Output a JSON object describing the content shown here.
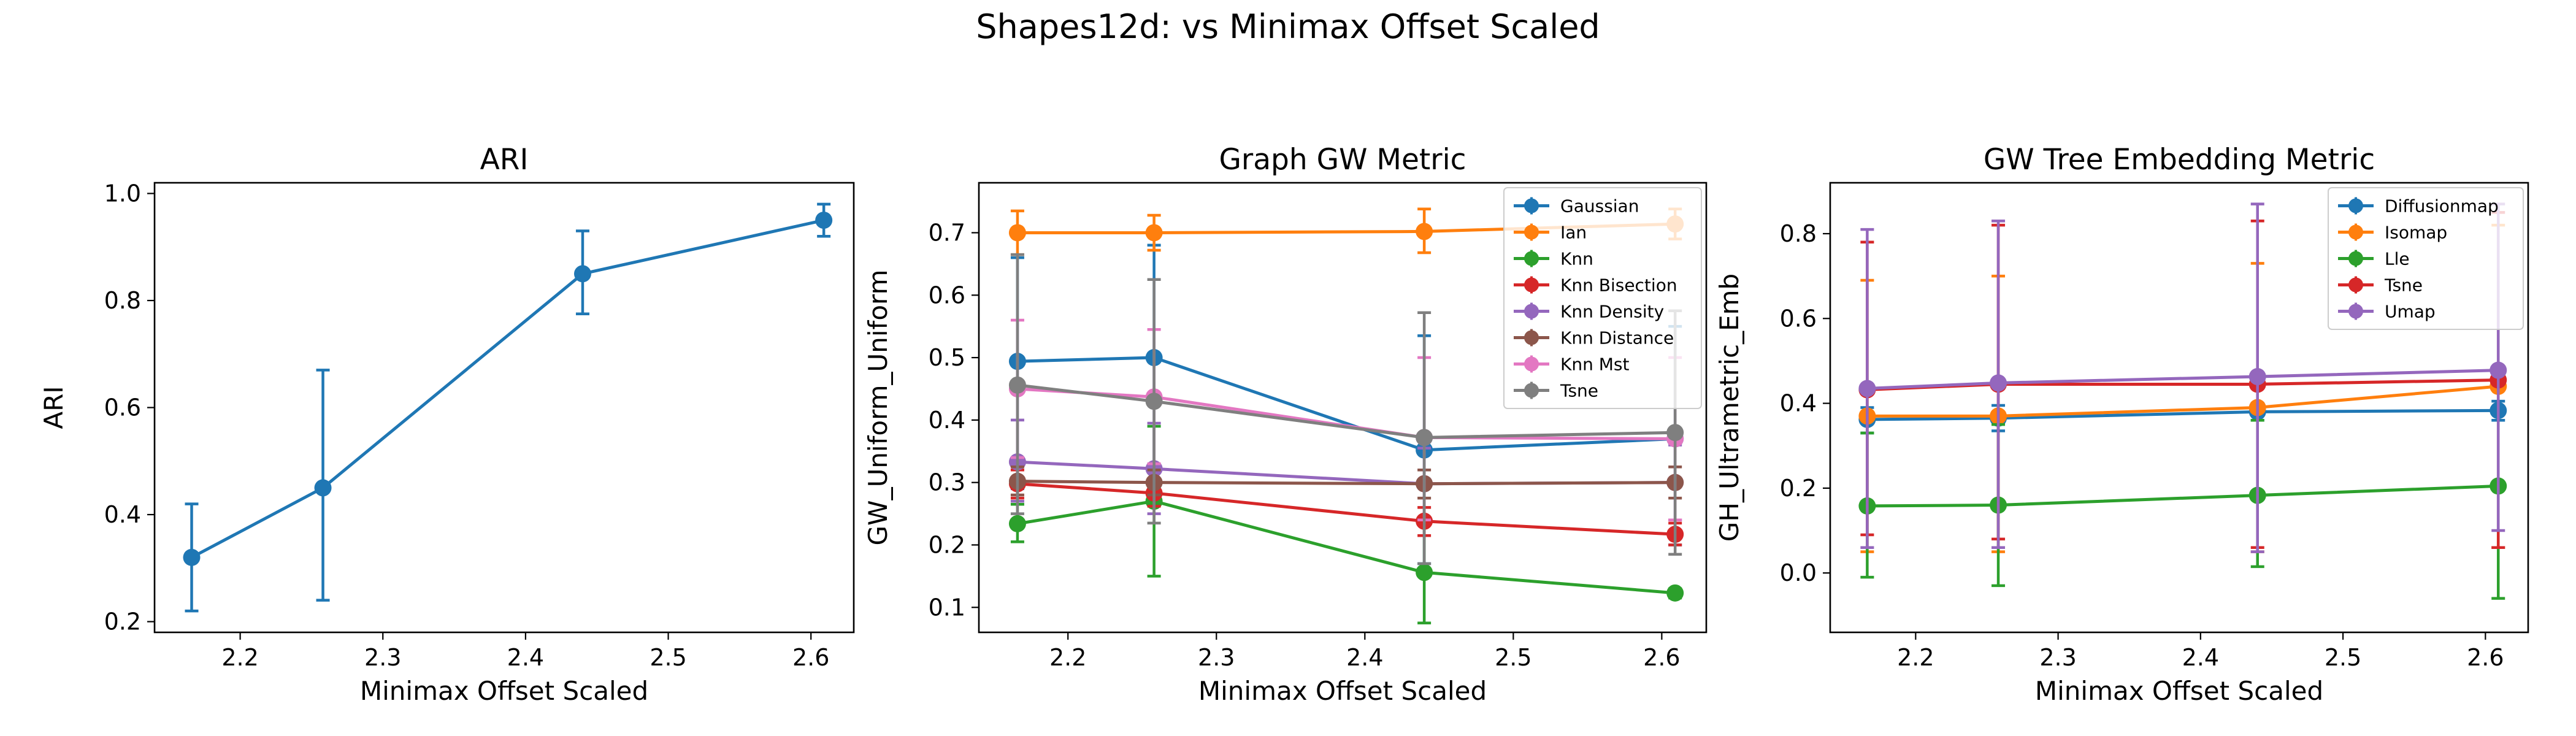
{
  "figure": {
    "title": "Shapes12d: vs Minimax Offset Scaled"
  },
  "colors": {
    "tab_blue": "#1f77b4",
    "tab_orange": "#ff7f0e",
    "tab_green": "#2ca02c",
    "tab_red": "#d62728",
    "tab_purple": "#9467bd",
    "tab_brown": "#8c564b",
    "tab_pink": "#e377c2",
    "tab_gray": "#7f7f7f"
  },
  "chart_data": [
    {
      "type": "line",
      "title": "ARI",
      "xlabel": "Minimax Offset Scaled",
      "ylabel": "ARI",
      "xlim": [
        2.14,
        2.63
      ],
      "ylim": [
        0.18,
        1.02
      ],
      "xticks": [
        2.2,
        2.3,
        2.4,
        2.5,
        2.6
      ],
      "xtick_labels": [
        "2.2",
        "2.3",
        "2.4",
        "2.5",
        "2.6"
      ],
      "yticks": [
        0.2,
        0.4,
        0.6,
        0.8,
        1.0
      ],
      "ytick_labels": [
        "0.2",
        "0.4",
        "0.6",
        "0.8",
        "1.0"
      ],
      "x": [
        2.166,
        2.258,
        2.44,
        2.609
      ],
      "legend": false,
      "series": [
        {
          "name": "ARI",
          "color": "#1f77b4",
          "values": [
            0.32,
            0.45,
            0.85,
            0.95
          ],
          "err_low": [
            0.22,
            0.24,
            0.775,
            0.92
          ],
          "err_high": [
            0.42,
            0.67,
            0.93,
            0.98
          ]
        }
      ]
    },
    {
      "type": "line",
      "title": "Graph GW Metric",
      "xlabel": "Minimax Offset Scaled",
      "ylabel": "GW_Uniform_Uniform",
      "xlim": [
        2.14,
        2.63
      ],
      "ylim": [
        0.06,
        0.78
      ],
      "xticks": [
        2.2,
        2.3,
        2.4,
        2.5,
        2.6
      ],
      "xtick_labels": [
        "2.2",
        "2.3",
        "2.4",
        "2.5",
        "2.6"
      ],
      "yticks": [
        0.1,
        0.2,
        0.3,
        0.4,
        0.5,
        0.6,
        0.7
      ],
      "ytick_labels": [
        "0.1",
        "0.2",
        "0.3",
        "0.4",
        "0.5",
        "0.6",
        "0.7"
      ],
      "x": [
        2.166,
        2.258,
        2.44,
        2.609
      ],
      "legend": true,
      "series": [
        {
          "name": "Gaussian",
          "color": "#1f77b4",
          "values": [
            0.494,
            0.5,
            0.352,
            0.37
          ],
          "err_low": [
            0.29,
            0.32,
            0.17,
            0.2
          ],
          "err_high": [
            0.66,
            0.68,
            0.535,
            0.55
          ]
        },
        {
          "name": "Ian",
          "color": "#ff7f0e",
          "values": [
            0.7,
            0.7,
            0.702,
            0.714
          ],
          "err_low": [
            0.665,
            0.672,
            0.668,
            0.69
          ],
          "err_high": [
            0.735,
            0.728,
            0.738,
            0.738
          ]
        },
        {
          "name": "Knn",
          "color": "#2ca02c",
          "values": [
            0.234,
            0.27,
            0.156,
            0.123
          ],
          "err_low": [
            0.205,
            0.15,
            0.075,
            0.115
          ],
          "err_high": [
            0.265,
            0.39,
            0.24,
            0.13
          ]
        },
        {
          "name": "Knn Bisection",
          "color": "#d62728",
          "values": [
            0.298,
            0.283,
            0.238,
            0.217
          ],
          "err_low": [
            0.275,
            0.262,
            0.215,
            0.2
          ],
          "err_high": [
            0.32,
            0.302,
            0.26,
            0.235
          ]
        },
        {
          "name": "Knn Density",
          "color": "#9467bd",
          "values": [
            0.333,
            0.322,
            0.298,
            0.3
          ],
          "err_low": [
            0.27,
            0.25,
            0.24,
            0.24
          ],
          "err_high": [
            0.4,
            0.395,
            0.355,
            0.36
          ]
        },
        {
          "name": "Knn Distance",
          "color": "#8c564b",
          "values": [
            0.302,
            0.3,
            0.298,
            0.3
          ],
          "err_low": [
            0.28,
            0.28,
            0.275,
            0.275
          ],
          "err_high": [
            0.325,
            0.32,
            0.32,
            0.325
          ]
        },
        {
          "name": "Knn Mst",
          "color": "#e377c2",
          "values": [
            0.45,
            0.437,
            0.372,
            0.37
          ],
          "err_low": [
            0.34,
            0.33,
            0.24,
            0.24
          ],
          "err_high": [
            0.56,
            0.545,
            0.5,
            0.5
          ]
        },
        {
          "name": "Tsne",
          "color": "#7f7f7f",
          "values": [
            0.456,
            0.43,
            0.372,
            0.38
          ],
          "err_low": [
            0.25,
            0.235,
            0.17,
            0.185
          ],
          "err_high": [
            0.665,
            0.625,
            0.572,
            0.575
          ]
        }
      ]
    },
    {
      "type": "line",
      "title": "GW Tree Embedding Metric",
      "xlabel": "Minimax Offset Scaled",
      "ylabel": "GH_Ultrametric_Emb",
      "xlim": [
        2.14,
        2.63
      ],
      "ylim": [
        -0.14,
        0.92
      ],
      "xticks": [
        2.2,
        2.3,
        2.4,
        2.5,
        2.6
      ],
      "xtick_labels": [
        "2.2",
        "2.3",
        "2.4",
        "2.5",
        "2.6"
      ],
      "yticks": [
        0.0,
        0.2,
        0.4,
        0.6,
        0.8
      ],
      "ytick_labels": [
        "0.0",
        "0.2",
        "0.4",
        "0.6",
        "0.8"
      ],
      "x": [
        2.166,
        2.258,
        2.44,
        2.609
      ],
      "legend": true,
      "series": [
        {
          "name": "Diffusionmap",
          "color": "#1f77b4",
          "values": [
            0.362,
            0.365,
            0.38,
            0.383
          ],
          "err_low": [
            0.33,
            0.335,
            0.36,
            0.36
          ],
          "err_high": [
            0.39,
            0.395,
            0.4,
            0.405
          ]
        },
        {
          "name": "Isomap",
          "color": "#ff7f0e",
          "values": [
            0.37,
            0.37,
            0.39,
            0.44
          ],
          "err_low": [
            0.05,
            0.05,
            0.05,
            0.06
          ],
          "err_high": [
            0.69,
            0.7,
            0.73,
            0.82
          ]
        },
        {
          "name": "Lle",
          "color": "#2ca02c",
          "values": [
            0.158,
            0.16,
            0.183,
            0.205
          ],
          "err_low": [
            -0.01,
            -0.03,
            0.015,
            -0.06
          ],
          "err_high": [
            0.33,
            0.35,
            0.36,
            0.47
          ]
        },
        {
          "name": "Tsne",
          "color": "#d62728",
          "values": [
            0.432,
            0.445,
            0.445,
            0.455
          ],
          "err_low": [
            0.09,
            0.08,
            0.06,
            0.06
          ],
          "err_high": [
            0.78,
            0.82,
            0.83,
            0.85
          ]
        },
        {
          "name": "Umap",
          "color": "#9467bd",
          "values": [
            0.435,
            0.448,
            0.463,
            0.478
          ],
          "err_low": [
            0.06,
            0.06,
            0.05,
            0.1
          ],
          "err_high": [
            0.81,
            0.83,
            0.87,
            0.87
          ]
        }
      ]
    }
  ]
}
